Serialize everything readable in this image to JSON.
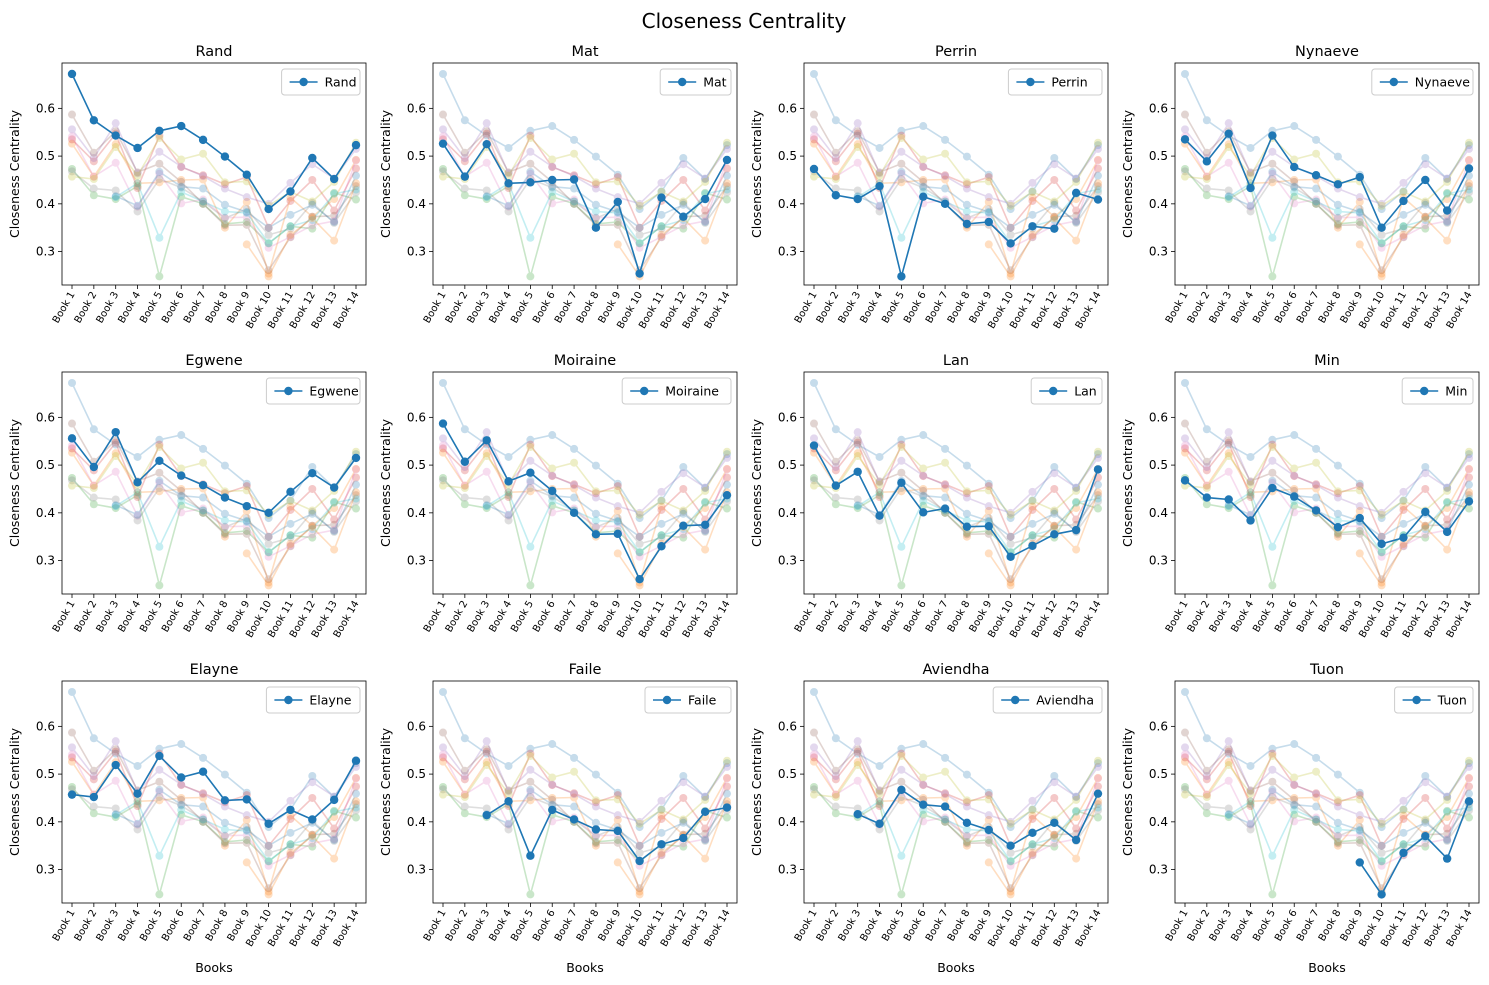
{
  "figure_title": "Closeness Centrality",
  "chart_data": {
    "type": "line",
    "ylim": [
      0.23,
      0.695
    ],
    "yticks": [
      0.3,
      0.4,
      0.5,
      0.6
    ],
    "ytick_labels": [
      "0.3",
      "0.4",
      "0.5",
      "0.6"
    ],
    "categories": [
      "Book 1",
      "Book 2",
      "Book 3",
      "Book 4",
      "Book 5",
      "Book 6",
      "Book 7",
      "Book 8",
      "Book 9",
      "Book 10",
      "Book 11",
      "Book 12",
      "Book 13",
      "Book 14"
    ],
    "ylabel": "Closeness Centrality",
    "xlabel": "Books",
    "grid": false,
    "legend": "top-right",
    "highlight_color": "#1f77b4",
    "faded_alpha": 0.25,
    "series": [
      {
        "name": "Rand",
        "color": "#1f77b4",
        "values": [
          0.672,
          0.575,
          0.543,
          0.517,
          0.553,
          0.563,
          0.534,
          0.499,
          0.461,
          0.389,
          0.426,
          0.496,
          0.452,
          0.523
        ]
      },
      {
        "name": "Mat",
        "color": "#ff7f0e",
        "values": [
          0.526,
          0.457,
          0.525,
          0.443,
          0.445,
          0.45,
          0.451,
          0.35,
          0.404,
          0.254,
          0.413,
          0.373,
          0.41,
          0.492
        ]
      },
      {
        "name": "Perrin",
        "color": "#2ca02c",
        "values": [
          0.473,
          0.418,
          0.41,
          0.437,
          0.248,
          0.415,
          0.4,
          0.358,
          0.362,
          0.317,
          0.353,
          0.348,
          0.423,
          0.409
        ]
      },
      {
        "name": "Nynaeve",
        "color": "#d62728",
        "values": [
          0.535,
          0.489,
          0.547,
          0.433,
          0.543,
          0.477,
          0.46,
          0.441,
          0.456,
          0.35,
          0.406,
          0.45,
          0.386,
          0.474
        ]
      },
      {
        "name": "Egwene",
        "color": "#9467bd",
        "values": [
          0.556,
          0.496,
          0.569,
          0.464,
          0.509,
          0.478,
          0.458,
          0.432,
          0.414,
          0.4,
          0.444,
          0.483,
          0.453,
          0.515
        ]
      },
      {
        "name": "Moiraine",
        "color": "#8c564b",
        "values": [
          0.587,
          0.507,
          0.552,
          0.466,
          0.484,
          0.446,
          0.4,
          0.355,
          0.356,
          0.261,
          0.33,
          0.373,
          0.375,
          0.437
        ]
      },
      {
        "name": "Lan",
        "color": "#e377c2",
        "values": [
          0.541,
          0.457,
          0.486,
          0.394,
          0.463,
          0.401,
          0.409,
          0.371,
          0.372,
          0.308,
          0.331,
          0.355,
          0.364,
          0.491
        ]
      },
      {
        "name": "Min",
        "color": "#7f7f7f",
        "values": [
          0.468,
          0.432,
          0.428,
          0.384,
          0.452,
          0.434,
          0.405,
          0.37,
          0.389,
          0.335,
          0.348,
          0.402,
          0.36,
          0.424
        ]
      },
      {
        "name": "Elayne",
        "color": "#bcbd22",
        "values": [
          0.457,
          0.452,
          0.519,
          0.459,
          0.538,
          0.493,
          0.505,
          0.445,
          0.447,
          0.396,
          0.425,
          0.405,
          0.446,
          0.528
        ]
      },
      {
        "name": "Faile",
        "color": "#17becf",
        "values": [
          null,
          null,
          0.414,
          0.443,
          0.329,
          0.425,
          0.405,
          0.384,
          0.381,
          0.318,
          0.353,
          0.366,
          0.421,
          0.43
        ]
      },
      {
        "name": "Aviendha",
        "color": "#1f77b4",
        "values": [
          null,
          null,
          0.416,
          0.396,
          0.467,
          0.436,
          0.432,
          0.398,
          0.383,
          0.35,
          0.377,
          0.398,
          0.362,
          0.459
        ]
      },
      {
        "name": "Tuon",
        "color": "#ff7f0e",
        "values": [
          null,
          null,
          null,
          null,
          null,
          null,
          null,
          null,
          0.315,
          0.248,
          0.335,
          0.37,
          0.323,
          0.443
        ]
      }
    ]
  }
}
